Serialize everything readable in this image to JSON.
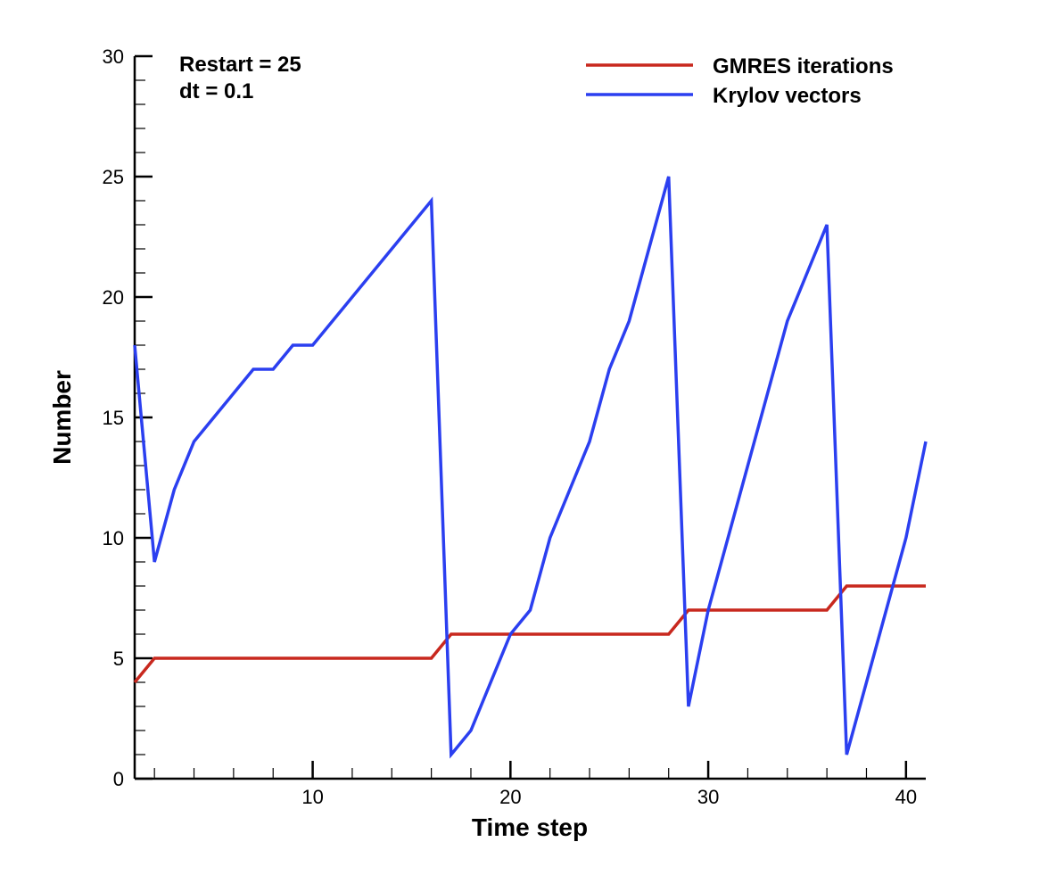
{
  "chart_data": {
    "type": "line",
    "xlabel": "Time step",
    "ylabel": "Number",
    "xlim": [
      1,
      41
    ],
    "ylim": [
      0,
      30
    ],
    "x_ticks": [
      10,
      20,
      30,
      40
    ],
    "y_ticks": [
      0,
      5,
      10,
      15,
      20,
      25,
      30
    ],
    "annotations": [
      "Restart = 25",
      "dt = 0.1"
    ],
    "legend_position": "top-right",
    "grid": false,
    "series": [
      {
        "name": "GMRES iterations",
        "color": "#c8281e",
        "x": [
          1,
          2,
          16,
          17,
          28,
          29,
          36,
          37,
          41
        ],
        "y": [
          4,
          5,
          5,
          6,
          6,
          7,
          7,
          8,
          8
        ]
      },
      {
        "name": "Krylov vectors",
        "color": "#2b3ff0",
        "x": [
          1,
          2,
          3,
          4,
          5,
          6,
          7,
          8,
          9,
          10,
          16,
          17,
          18,
          19,
          20,
          21,
          22,
          23,
          24,
          25,
          26,
          27,
          28,
          29,
          30,
          31,
          32,
          33,
          34,
          35,
          36,
          37,
          38,
          39,
          40,
          41
        ],
        "y": [
          18,
          9,
          12,
          14,
          15,
          16,
          17,
          17,
          18,
          18,
          24,
          1,
          2,
          4,
          6,
          7,
          10,
          12,
          14,
          17,
          19,
          22,
          25,
          3,
          7,
          10,
          13,
          16,
          19,
          21,
          23,
          1,
          4,
          7,
          10,
          14
        ]
      }
    ]
  }
}
